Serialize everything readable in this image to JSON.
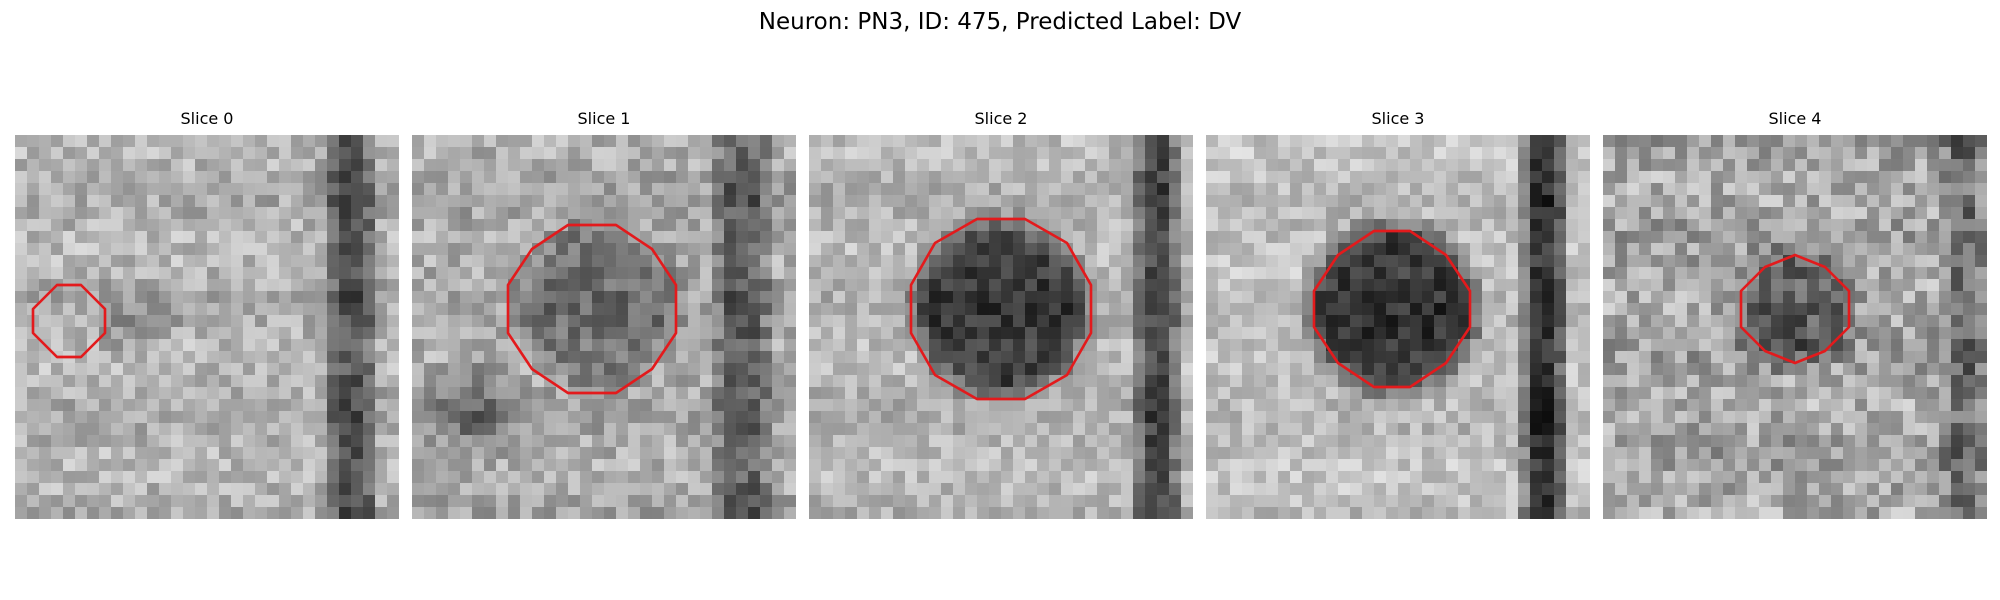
{
  "figure": {
    "title": "Neuron: PN3, ID: 475, Predicted Label: DV"
  },
  "panels": [
    {
      "title": "Slice 0"
    },
    {
      "title": "Slice 1"
    },
    {
      "title": "Slice 2"
    },
    {
      "title": "Slice 3"
    },
    {
      "title": "Slice 4"
    }
  ],
  "colors": {
    "contour": "#e31a1c",
    "background": "#ffffff"
  }
}
